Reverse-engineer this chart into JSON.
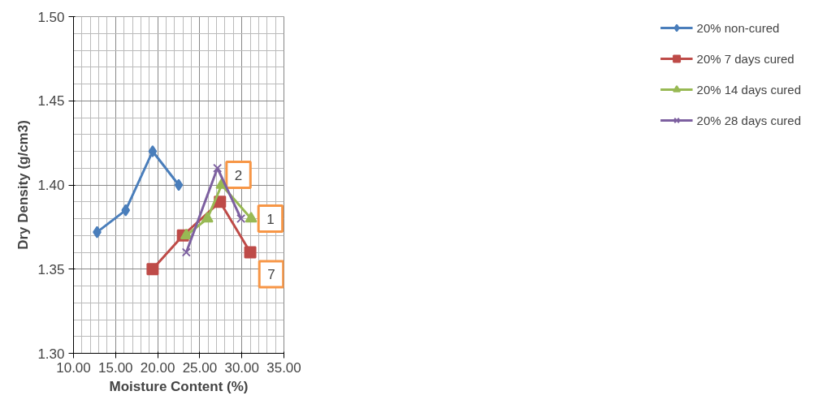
{
  "chart_data": {
    "type": "line",
    "xlabel": "Moisture Content (%)",
    "ylabel": "Dry Density (g/cm3)",
    "xlim": [
      10,
      35
    ],
    "ylim": [
      1.3,
      1.5
    ],
    "xticks": [
      {
        "value": 10,
        "label": "10.00"
      },
      {
        "value": 15,
        "label": "15.00"
      },
      {
        "value": 20,
        "label": "20.00"
      },
      {
        "value": 25,
        "label": "25.00"
      },
      {
        "value": 30,
        "label": "30.00"
      },
      {
        "value": 35,
        "label": "35.00"
      }
    ],
    "yticks": [
      {
        "value": 1.3,
        "label": "1.30"
      },
      {
        "value": 1.35,
        "label": "1.35"
      },
      {
        "value": 1.4,
        "label": "1.40"
      },
      {
        "value": 1.45,
        "label": "1.45"
      },
      {
        "value": 1.5,
        "label": "1.50"
      }
    ],
    "grid": true,
    "legend": "right",
    "series": [
      {
        "name": "20% non-cured",
        "color": "#4a7ebb",
        "marker": "diamond",
        "x": [
          12.8,
          16.2,
          19.4,
          22.5
        ],
        "values": [
          1.372,
          1.385,
          1.42,
          1.4
        ]
      },
      {
        "name": "20% 7 days cured",
        "color": "#be4b48",
        "marker": "square",
        "x": [
          19.4,
          23.0,
          27.4,
          31.0
        ],
        "values": [
          1.35,
          1.37,
          1.39,
          1.36
        ]
      },
      {
        "name": "20% 14 days cured",
        "color": "#98b954",
        "marker": "triangle",
        "x": [
          23.4,
          25.9,
          27.6,
          31.1
        ],
        "values": [
          1.37,
          1.38,
          1.4,
          1.38
        ]
      },
      {
        "name": "20% 28 days cured",
        "color": "#7d60a0",
        "marker": "cross",
        "x": [
          23.4,
          27.1,
          29.9
        ],
        "values": [
          1.36,
          1.41,
          1.38
        ]
      }
    ],
    "annotations": [
      {
        "text": "2",
        "x": 29.6,
        "y": 1.406
      },
      {
        "text": "1",
        "x": 33.4,
        "y": 1.38
      },
      {
        "text": "7",
        "x": 33.5,
        "y": 1.347
      }
    ]
  }
}
